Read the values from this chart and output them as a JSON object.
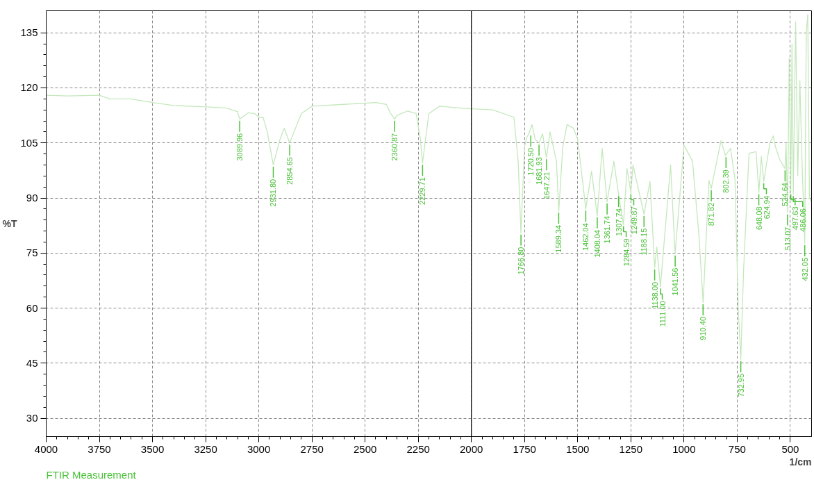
{
  "chart_data": {
    "type": "line",
    "xlabel": "1/cm",
    "ylabel": "%T",
    "xlim": [
      4000,
      400
    ],
    "ylim": [
      25,
      141
    ],
    "xticks": [
      4000,
      3750,
      3500,
      3250,
      3000,
      2750,
      2500,
      2250,
      2000,
      1750,
      1500,
      1250,
      1000,
      750,
      500
    ],
    "yticks": [
      30,
      45,
      60,
      75,
      90,
      105,
      120,
      135
    ],
    "grid": true,
    "marker": "none",
    "line_style": "solid",
    "ref_lines": [
      {
        "axis": "x",
        "value": 2000,
        "label": null,
        "color": "#000000",
        "line_style": "solid"
      }
    ],
    "series": [
      {
        "color": "#c4e8bc",
        "x": [
          4000,
          3900,
          3750,
          3700,
          3600,
          3500,
          3400,
          3250,
          3150,
          3100,
          3090,
          3050,
          3020,
          3000,
          2980,
          2960,
          2932,
          2900,
          2880,
          2855,
          2800,
          2750,
          2600,
          2450,
          2400,
          2380,
          2361,
          2350,
          2300,
          2260,
          2240,
          2230,
          2220,
          2200,
          2150,
          2050,
          2000,
          1900,
          1800,
          1780,
          1767,
          1750,
          1740,
          1730,
          1715,
          1700,
          1682,
          1665,
          1647,
          1630,
          1600,
          1589,
          1570,
          1550,
          1520,
          1500,
          1462,
          1435,
          1408,
          1385,
          1362,
          1330,
          1308,
          1285,
          1268,
          1250,
          1240,
          1188,
          1160,
          1138,
          1128,
          1111,
          1063,
          1042,
          1000,
          960,
          930,
          910,
          890,
          883,
          872,
          826,
          805,
          781,
          760,
          745,
          733,
          720,
          700,
          694,
          661,
          648,
          636,
          625,
          596,
          580,
          570,
          550,
          530,
          525,
          520,
          513,
          505,
          498,
          492,
          486,
          475,
          465,
          455,
          445,
          432,
          425,
          418,
          410,
          402
        ],
        "values": [
          118,
          117.8,
          118,
          117,
          117,
          116,
          115.2,
          114.8,
          114.5,
          113.5,
          111.5,
          113.2,
          113,
          112,
          112,
          108,
          99,
          106,
          109,
          105,
          113,
          115,
          115.5,
          116,
          115.5,
          113,
          111.5,
          112.5,
          113.7,
          113,
          106,
          99.5,
          104,
          113,
          115,
          114.5,
          114.3,
          114,
          112,
          100,
          80.5,
          104,
          106.5,
          107.5,
          110,
          106,
          105,
          107.5,
          101,
          108,
          100,
          86.5,
          104,
          110,
          109,
          106,
          87,
          97.3,
          85.2,
          103.5,
          89,
          100,
          91,
          82.8,
          98,
          91.5,
          99,
          85.6,
          94.5,
          71,
          76.7,
          65.8,
          99,
          74.8,
          104.4,
          100,
          80,
          61.5,
          86,
          94.8,
          92.6,
          105.6,
          101.6,
          103.5,
          95,
          60,
          46,
          70,
          95,
          102.2,
          102.6,
          91.5,
          101.3,
          94.5,
          105,
          106.9,
          104,
          100.5,
          98.5,
          98,
          105,
          86,
          128,
          91.5,
          132,
          91,
          138,
          96,
          122,
          100,
          77.6,
          135,
          140,
          90,
          89
        ]
      }
    ],
    "annotations": [
      {
        "text": "3089.96",
        "x": 3089.96,
        "y": 111.5
      },
      {
        "text": "2931.80",
        "x": 2931.8,
        "y": 99
      },
      {
        "text": "2854.65",
        "x": 2854.65,
        "y": 105
      },
      {
        "text": "2360.87",
        "x": 2360.87,
        "y": 111.5
      },
      {
        "text": "2229.71",
        "x": 2229.71,
        "y": 99.5
      },
      {
        "text": "1766.80",
        "x": 1766.8,
        "y": 80.5
      },
      {
        "text": "1720.50",
        "x": 1720.5,
        "y": 107.5
      },
      {
        "text": "1681.93",
        "x": 1681.93,
        "y": 105
      },
      {
        "text": "1647.21",
        "x": 1647.21,
        "y": 101
      },
      {
        "text": "1589.34",
        "x": 1589.34,
        "y": 86.5
      },
      {
        "text": "1462.04",
        "x": 1462.04,
        "y": 87
      },
      {
        "text": "1408.04",
        "x": 1408.04,
        "y": 85.2
      },
      {
        "text": "1361.74",
        "x": 1361.74,
        "y": 89
      },
      {
        "text": "1307.74",
        "x": 1307.74,
        "y": 91
      },
      {
        "text": "1284.59",
        "x": 1284.59,
        "y": 82.8
      },
      {
        "text": "1249.87",
        "x": 1249.87,
        "y": 91.5
      },
      {
        "text": "1188.15",
        "x": 1188.15,
        "y": 85.6
      },
      {
        "text": "1138.00",
        "x": 1138,
        "y": 71
      },
      {
        "text": "1111.00",
        "x": 1111,
        "y": 65.8
      },
      {
        "text": "1041.56",
        "x": 1041.56,
        "y": 74.8
      },
      {
        "text": "910.40",
        "x": 910.4,
        "y": 61.5
      },
      {
        "text": "871.82",
        "x": 871.82,
        "y": 92.6
      },
      {
        "text": "802.39",
        "x": 802.39,
        "y": 101.6
      },
      {
        "text": "732.95",
        "x": 732.95,
        "y": 46
      },
      {
        "text": "648.08",
        "x": 648.08,
        "y": 91.5
      },
      {
        "text": "624.94",
        "x": 624.94,
        "y": 94.5
      },
      {
        "text": "524.64",
        "x": 524.64,
        "y": 98
      },
      {
        "text": "513.07",
        "x": 513.07,
        "y": 86
      },
      {
        "text": "497.63",
        "x": 497.63,
        "y": 91.5
      },
      {
        "text": "486.06",
        "x": 486.06,
        "y": 91
      },
      {
        "text": "432.05",
        "x": 432.05,
        "y": 77.6
      },
      "FTIR Measurement"
    ]
  }
}
